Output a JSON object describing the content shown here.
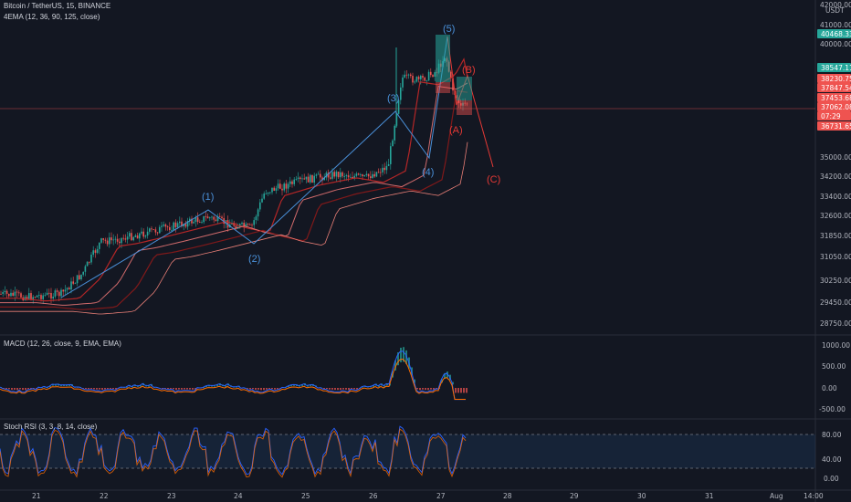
{
  "legend": {
    "symbol": "Bitcoin / TetherUS, 15, BINANCE",
    "ema": "4EMA (12, 36, 90, 125, close)",
    "macd": "MACD (12, 26, close, 9, EMA, EMA)",
    "stoch": "Stoch RSI (3, 3, 8, 14, close)"
  },
  "price_axis": {
    "currency": "USDT",
    "ticks": [
      "42000.00",
      "41000.00",
      "40000.00",
      "35000.00",
      "34200.00",
      "33400.00",
      "32600.00",
      "31850.00",
      "31050.00",
      "30250.00",
      "29450.00",
      "28750.00"
    ],
    "tags": [
      {
        "text": "40468.33",
        "color": "#26a69a"
      },
      {
        "text": "38547.11",
        "color": "#26a69a"
      },
      {
        "text": "38230.75",
        "color": "#ef5350"
      },
      {
        "text": "37847.54",
        "color": "#ef5350"
      },
      {
        "text": "37453.68",
        "color": "#ef5350"
      },
      {
        "text": "37062.08",
        "color": "#ef5350"
      },
      {
        "text": "07:29",
        "color": "#ef5350"
      },
      {
        "text": "36731.65",
        "color": "#ef5350"
      }
    ]
  },
  "macd_axis": {
    "ticks": [
      "1000.00",
      "500.00",
      "0.00",
      "-500.00"
    ]
  },
  "stoch_axis": {
    "ticks": [
      "80.00",
      "40.00",
      "0.00"
    ]
  },
  "time_axis": {
    "ticks": [
      "21",
      "22",
      "23",
      "24",
      "25",
      "26",
      "27",
      "28",
      "29",
      "30",
      "31",
      "Aug",
      "14:00"
    ]
  },
  "waves": {
    "blue": [
      "(1)",
      "(2)",
      "(3)",
      "(4)",
      "(5)"
    ],
    "red": [
      "(A)",
      "(B)",
      "(C)"
    ]
  },
  "colors": {
    "background": "#131722",
    "up": "#26a69a",
    "down": "#ef5350",
    "wave_blue": "#4a90d9",
    "wave_red": "#e53935"
  }
}
